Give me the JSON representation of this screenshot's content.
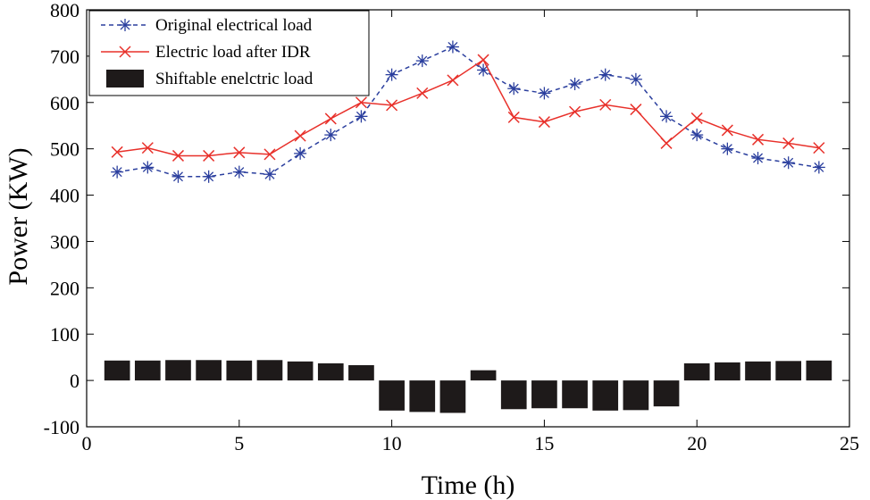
{
  "chart_data": {
    "type": "line",
    "title": "",
    "xlabel": "Time (h)",
    "ylabel": "Power (KW)",
    "xlim": [
      0,
      25
    ],
    "ylim": [
      -100,
      800
    ],
    "xticks": [
      0,
      5,
      10,
      15,
      20,
      25
    ],
    "xtick_labels": [
      "0",
      "5",
      "10",
      "15",
      "20",
      "25"
    ],
    "yticks": [
      -100,
      0,
      100,
      200,
      300,
      400,
      500,
      600,
      700,
      800
    ],
    "ytick_labels": [
      "-100",
      "0",
      "100",
      "200",
      "300",
      "400",
      "500",
      "600",
      "700",
      "800"
    ],
    "grid": false,
    "legend_position": "top-left",
    "x": [
      1,
      2,
      3,
      4,
      5,
      6,
      7,
      8,
      9,
      10,
      11,
      12,
      13,
      14,
      15,
      16,
      17,
      18,
      19,
      20,
      21,
      22,
      23,
      24
    ],
    "series": [
      {
        "name": "Original electrical load",
        "kind": "line",
        "style": "dashed",
        "marker": "asterisk",
        "color": "#2b3f9e",
        "values": [
          450,
          460,
          440,
          440,
          450,
          445,
          490,
          530,
          570,
          660,
          690,
          720,
          670,
          630,
          620,
          640,
          660,
          650,
          570,
          530,
          500,
          480,
          470,
          460
        ]
      },
      {
        "name": "Electric load after IDR",
        "kind": "line",
        "style": "solid",
        "marker": "x",
        "color": "#e8302a",
        "values": [
          493,
          502,
          485,
          485,
          492,
          488,
          528,
          565,
          600,
          594,
          620,
          648,
          692,
          568,
          558,
          580,
          595,
          585,
          512,
          566,
          540,
          520,
          512,
          502
        ]
      },
      {
        "name": "Shiftable enelctric load",
        "kind": "bar",
        "color": "#1e1a1a",
        "values": [
          43,
          43,
          44,
          44,
          43,
          44,
          41,
          37,
          33,
          -65,
          -68,
          -70,
          22,
          -62,
          -60,
          -60,
          -65,
          -64,
          -56,
          37,
          39,
          41,
          42,
          43
        ]
      }
    ]
  }
}
